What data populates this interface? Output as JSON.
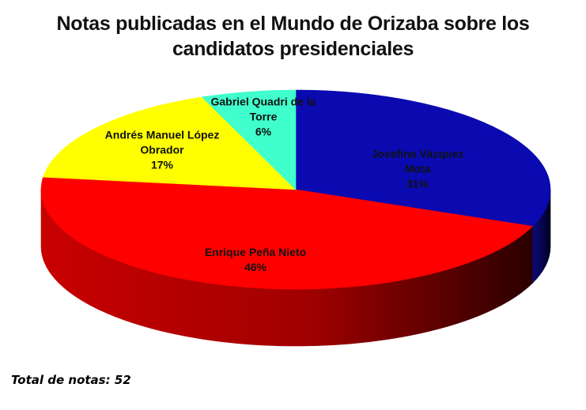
{
  "chart_data": {
    "type": "pie",
    "title_lines": [
      "Notas publicadas en el Mundo de Orizaba sobre los",
      "candidatos presidenciales"
    ],
    "slices": [
      {
        "label_lines": [
          "Josefina Vázquez",
          "Mota"
        ],
        "value": 31,
        "value_label": "31%",
        "color": "#0a0ab0",
        "side": "#05055e"
      },
      {
        "label_lines": [
          "Enrique Peña Nieto"
        ],
        "value": 46,
        "value_label": "46%",
        "color": "#ff0000",
        "side": "#8a0000"
      },
      {
        "label_lines": [
          "Andrés Manuel López",
          "Obrador"
        ],
        "value": 17,
        "value_label": "17%",
        "color": "#ffff00",
        "side": "#8a8a00"
      },
      {
        "label_lines": [
          "Gabriel Quadri de la",
          "Torre"
        ],
        "value": 6,
        "value_label": "6%",
        "color": "#40ffcc",
        "side": "#208a70"
      }
    ]
  },
  "footer": {
    "total_text": "Total de notas: 52"
  }
}
